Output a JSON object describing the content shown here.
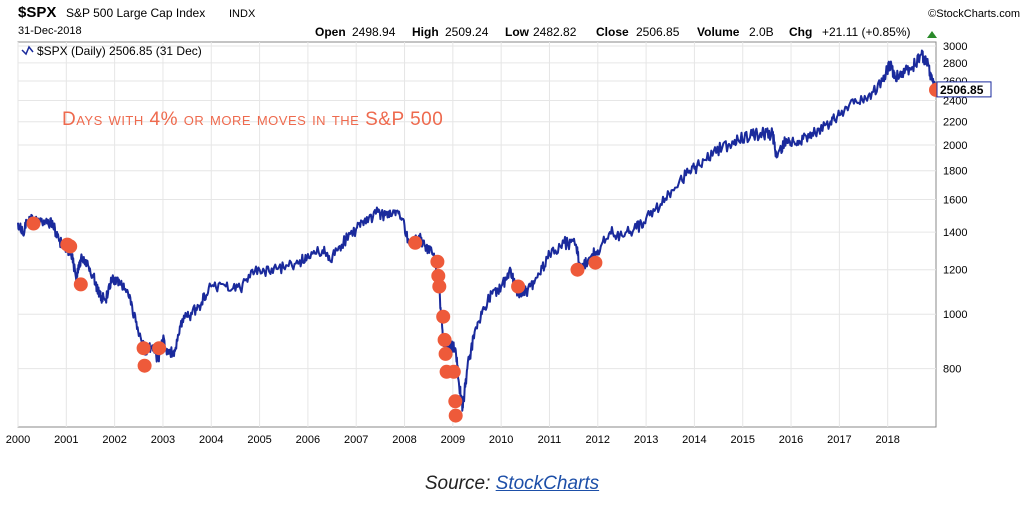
{
  "header": {
    "symbol": "$SPX",
    "name": "S&P 500 Large Cap Index",
    "exchange": "INDX",
    "date": "31-Dec-2018",
    "brand": "©StockCharts.com",
    "open_label": "Open",
    "open_value": "2498.94",
    "high_label": "High",
    "high_value": "2509.24",
    "low_label": "Low",
    "low_value": "2482.82",
    "close_label": "Close",
    "close_value": "2506.85",
    "volume_label": "Volume",
    "volume_value": "2.0B",
    "chg_label": "Chg",
    "chg_value": "+21.11 (+0.85%)",
    "legend": "$SPX (Daily) 2506.85 (31 Dec)",
    "last_price_tag": "2506.85"
  },
  "colors": {
    "line": "#1a2a9c",
    "marker": "#ee5a3a",
    "annotation": "#ee6a4e",
    "price_tag_border": "#1a2a9c"
  },
  "source": {
    "prefix": "Source:",
    "link_text": "StockCharts"
  },
  "chart_data": {
    "type": "line",
    "scale": "log",
    "ylim": [
      630,
      3050
    ],
    "xlim": [
      2000.0,
      2019.0
    ],
    "grid": true,
    "annotation": "Days with 4% or more moves in the S&P 500",
    "y_ticks": [
      800,
      1000,
      1200,
      1400,
      1600,
      1800,
      2000,
      2200,
      2400,
      2600,
      2800,
      3000
    ],
    "y_tick_labels": [
      "800",
      "1000",
      "1200",
      "1400",
      "1600",
      "1800",
      "2000",
      "2200",
      "2400",
      "2600",
      "2800",
      "3000"
    ],
    "x_ticks": [
      2000,
      2001,
      2002,
      2003,
      2004,
      2005,
      2006,
      2007,
      2008,
      2009,
      2010,
      2011,
      2012,
      2013,
      2014,
      2015,
      2016,
      2017,
      2018
    ],
    "x_tick_labels": [
      "2000",
      "2001",
      "2002",
      "2003",
      "2004",
      "2005",
      "2006",
      "2007",
      "2008",
      "2009",
      "2010",
      "2011",
      "2012",
      "2013",
      "2014",
      "2015",
      "2016",
      "2017",
      "2018"
    ],
    "series": [
      {
        "x": [
          2000.0,
          2000.1,
          2000.2,
          2000.3,
          2000.45,
          2000.6,
          2000.72,
          2000.85,
          2001.0,
          2001.1,
          2001.2,
          2001.3,
          2001.45,
          2001.6,
          2001.7,
          2001.8,
          2001.95,
          2002.1,
          2002.25,
          2002.4,
          2002.55,
          2002.65,
          2002.78,
          2002.9,
          2003.0,
          2003.12,
          2003.25,
          2003.4,
          2003.6,
          2003.8,
          2004.0,
          2004.3,
          2004.6,
          2004.9,
          2005.2,
          2005.5,
          2005.8,
          2006.0,
          2006.3,
          2006.45,
          2006.7,
          2007.0,
          2007.2,
          2007.45,
          2007.6,
          2007.8,
          2007.95,
          2008.1,
          2008.3,
          2008.45,
          2008.6,
          2008.72,
          2008.8,
          2008.88,
          2008.95,
          2009.05,
          2009.15,
          2009.2,
          2009.3,
          2009.45,
          2009.6,
          2009.8,
          2010.0,
          2010.2,
          2010.32,
          2010.45,
          2010.6,
          2010.8,
          2011.0,
          2011.3,
          2011.55,
          2011.65,
          2011.8,
          2012.0,
          2012.25,
          2012.5,
          2012.8,
          2013.0,
          2013.3,
          2013.6,
          2013.9,
          2014.1,
          2014.4,
          2014.7,
          2014.9,
          2015.2,
          2015.4,
          2015.62,
          2015.7,
          2015.9,
          2016.05,
          2016.25,
          2016.5,
          2016.8,
          2017.0,
          2017.3,
          2017.6,
          2017.9,
          2018.05,
          2018.15,
          2018.3,
          2018.5,
          2018.7,
          2018.8,
          2018.9,
          2018.98
        ],
        "y": [
          1455,
          1400,
          1470,
          1480,
          1455,
          1450,
          1450,
          1350,
          1320,
          1280,
          1160,
          1250,
          1220,
          1140,
          1080,
          1060,
          1150,
          1130,
          1100,
          1000,
          900,
          860,
          880,
          830,
          900,
          850,
          860,
          980,
          1000,
          1050,
          1120,
          1120,
          1110,
          1190,
          1190,
          1210,
          1230,
          1280,
          1300,
          1250,
          1330,
          1420,
          1450,
          1520,
          1500,
          1530,
          1480,
          1330,
          1380,
          1300,
          1280,
          1100,
          900,
          850,
          880,
          870,
          730,
          680,
          800,
          930,
          1000,
          1090,
          1120,
          1200,
          1100,
          1080,
          1120,
          1180,
          1280,
          1340,
          1330,
          1190,
          1250,
          1300,
          1400,
          1380,
          1420,
          1480,
          1570,
          1680,
          1800,
          1840,
          1950,
          2000,
          2050,
          2080,
          2100,
          2090,
          1900,
          2050,
          2030,
          2050,
          2100,
          2180,
          2260,
          2370,
          2450,
          2600,
          2800,
          2640,
          2700,
          2750,
          2900,
          2820,
          2650,
          2507
        ]
      }
    ],
    "events": [
      {
        "x": 2000.32,
        "y": 1450
      },
      {
        "x": 2001.02,
        "y": 1330
      },
      {
        "x": 2001.08,
        "y": 1320
      },
      {
        "x": 2001.3,
        "y": 1130
      },
      {
        "x": 2002.6,
        "y": 870
      },
      {
        "x": 2002.62,
        "y": 810
      },
      {
        "x": 2002.92,
        "y": 870
      },
      {
        "x": 2008.22,
        "y": 1340
      },
      {
        "x": 2008.68,
        "y": 1240
      },
      {
        "x": 2008.7,
        "y": 1170
      },
      {
        "x": 2008.72,
        "y": 1120
      },
      {
        "x": 2008.8,
        "y": 990
      },
      {
        "x": 2008.83,
        "y": 900
      },
      {
        "x": 2008.85,
        "y": 850
      },
      {
        "x": 2008.87,
        "y": 790
      },
      {
        "x": 2009.02,
        "y": 790
      },
      {
        "x": 2009.05,
        "y": 700
      },
      {
        "x": 2009.06,
        "y": 660
      },
      {
        "x": 2010.35,
        "y": 1120
      },
      {
        "x": 2011.58,
        "y": 1200
      },
      {
        "x": 2011.95,
        "y": 1235
      },
      {
        "x": 2019.0,
        "y": 2507
      }
    ]
  }
}
